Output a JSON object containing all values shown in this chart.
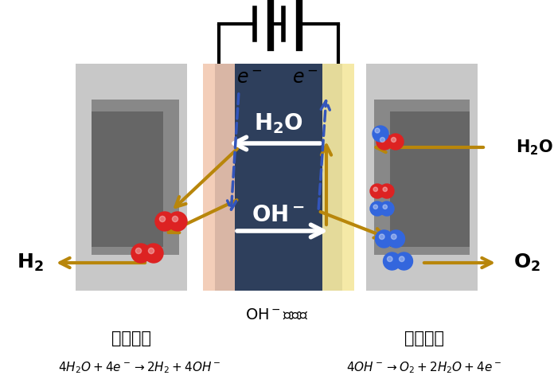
{
  "bg_color": "#ffffff",
  "dark_slate": "#2e3f5c",
  "light_gray": "#c8c8c8",
  "mid_gray": "#888888",
  "dark_gray": "#666666",
  "cathode_layer_color": "#f2c8b0",
  "anode_layer_color": "#f5e8a0",
  "arrow_gold": "#b8860b",
  "arrow_blue": "#3355bb",
  "red_mol": "#dd2222",
  "blue_mol": "#3366dd",
  "white": "#ffffff",
  "black": "#000000"
}
